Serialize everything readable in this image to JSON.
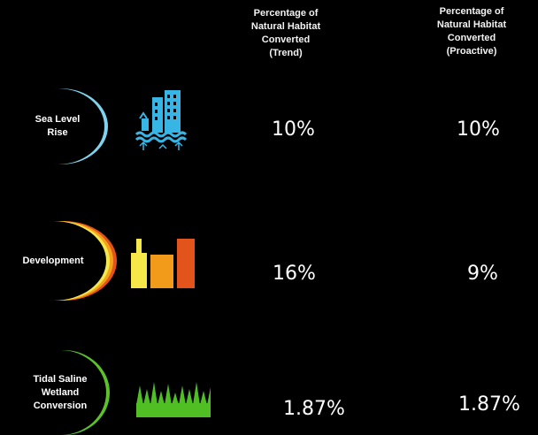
{
  "columns": {
    "trend": [
      "Percentage of",
      "Natural Habitat",
      "Converted",
      "(Trend)"
    ],
    "proactive": [
      "Percentage of",
      "Natural Habitat",
      "Converted",
      "(Proactive)"
    ]
  },
  "rows": [
    {
      "label": [
        "Sea Level",
        "Rise"
      ],
      "icon": "city-flood-icon",
      "trend": "10%",
      "proactive": "10%",
      "ring_colors": [
        "#7fd3ee"
      ]
    },
    {
      "label": [
        "Development"
      ],
      "icon": "buildings-icon",
      "trend": "16%",
      "proactive": "9%",
      "ring_colors": [
        "#f7e84a",
        "#f6a21b",
        "#e3531c"
      ]
    },
    {
      "label": [
        "Tidal Saline",
        "Wetland",
        "Conversion"
      ],
      "icon": "grass-icon",
      "trend": "1.87%",
      "proactive": "1.87%",
      "ring_colors": [
        "#5cc22a"
      ]
    }
  ],
  "colors": {
    "background": "#000000",
    "water_blue": "#37b6e6",
    "yellow": "#f7e84a",
    "orange": "#f29b1b",
    "red_orange": "#e3531c",
    "grass_green": "#4fbf24"
  }
}
